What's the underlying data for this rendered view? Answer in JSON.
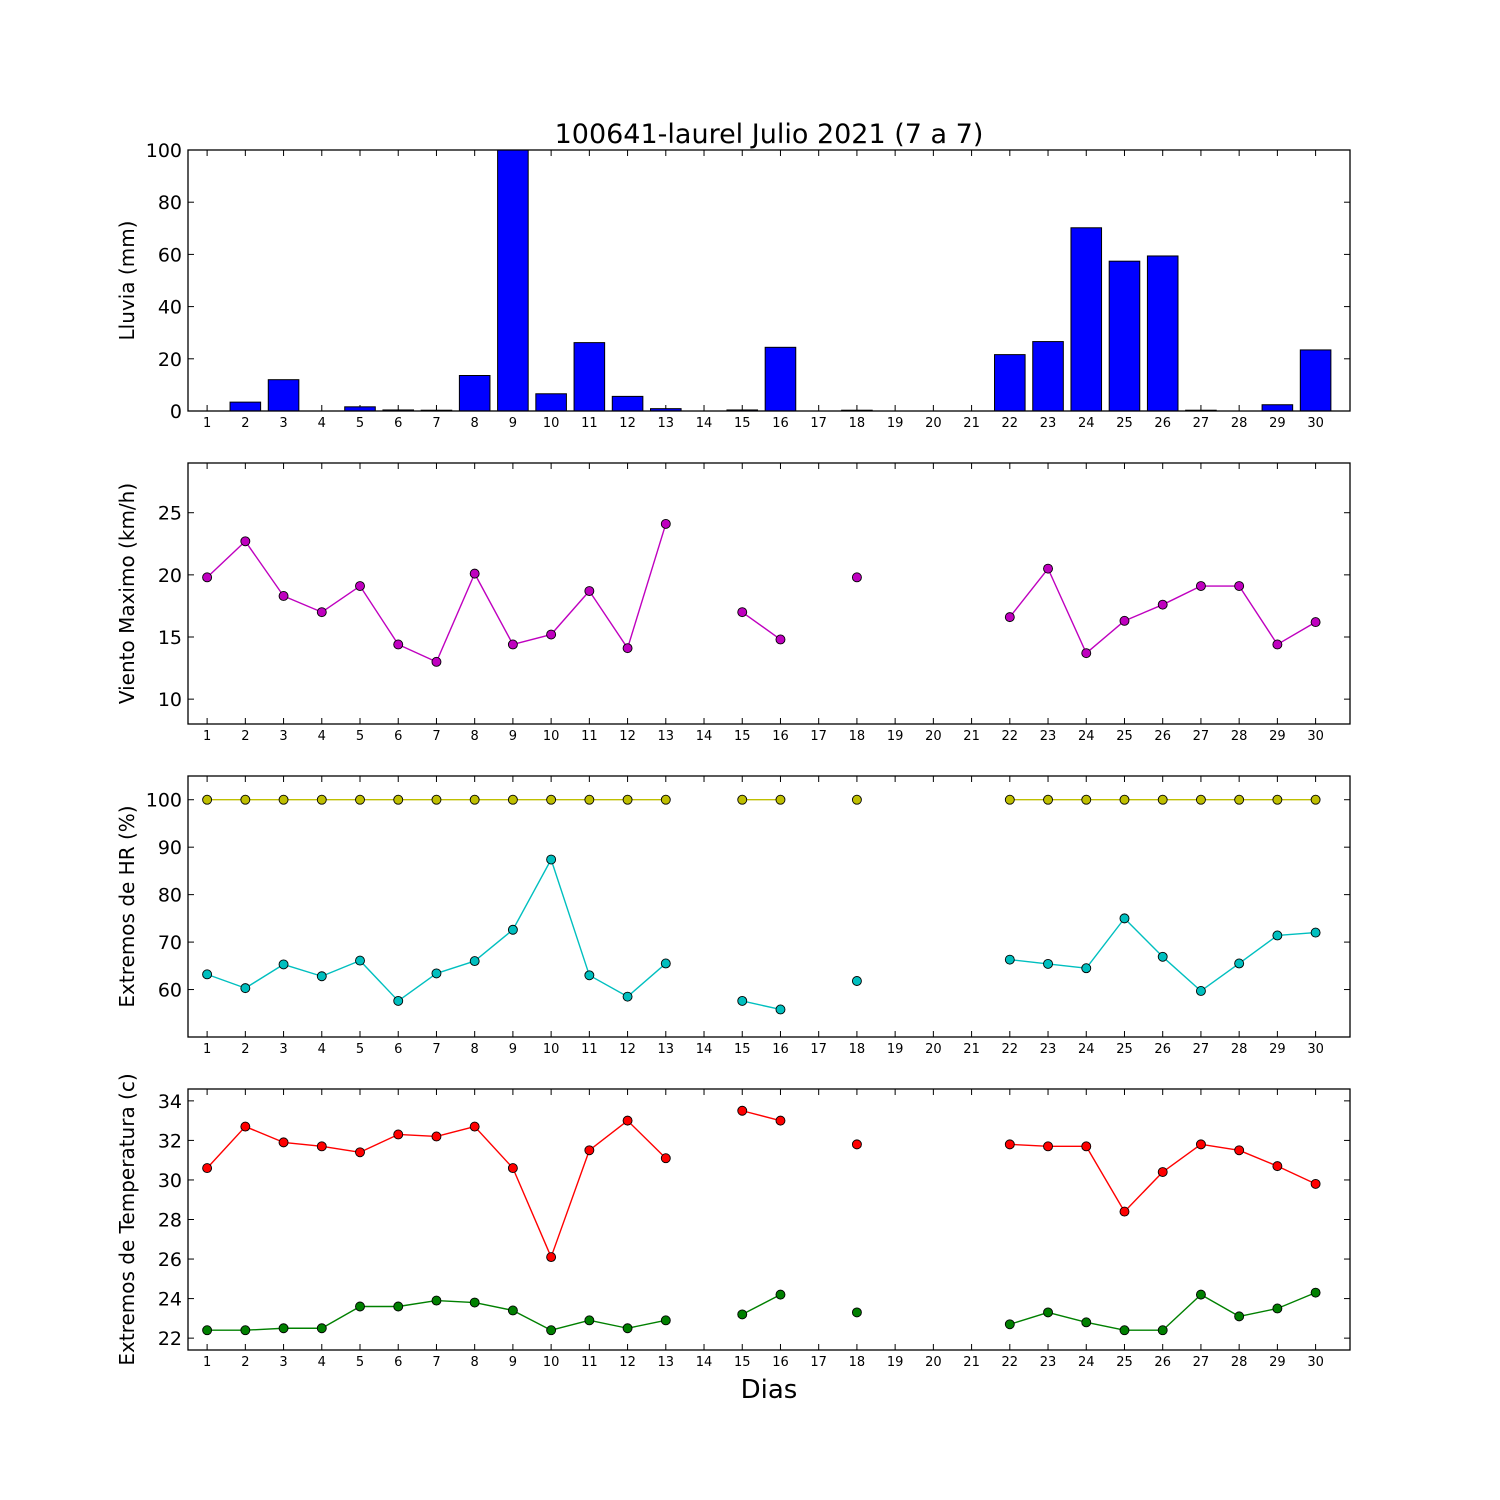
{
  "figure": {
    "title": "100641-laurel Julio 2021  (7 a 7)",
    "xlabel": "Dias"
  },
  "chart_data": [
    {
      "type": "bar",
      "ylabel": "Lluvia (mm)",
      "ylim": [
        0,
        100
      ],
      "yticks": [
        0,
        20,
        40,
        60,
        80,
        100
      ],
      "x": [
        1,
        2,
        3,
        4,
        5,
        6,
        7,
        8,
        9,
        10,
        11,
        12,
        13,
        14,
        15,
        16,
        17,
        18,
        19,
        20,
        21,
        22,
        23,
        24,
        25,
        26,
        27,
        28,
        29,
        30
      ],
      "xticks": [
        "1",
        "2",
        "3",
        "4",
        "5",
        "6",
        "7",
        "8",
        "9",
        "10",
        "11",
        "12",
        "13",
        "14",
        "15",
        "16",
        "17",
        "18",
        "19",
        "20",
        "21",
        "22",
        "23",
        "24",
        "25",
        "26",
        "27",
        "28",
        "29",
        "30"
      ],
      "series": [
        {
          "color": "#0000ff",
          "values": [
            0,
            3.4,
            12,
            0,
            1.6,
            0.4,
            0.3,
            13.6,
            100,
            6.6,
            26.2,
            5.6,
            0.9,
            0,
            0.4,
            24.4,
            0,
            0.3,
            0,
            0,
            0,
            21.6,
            26.6,
            70.2,
            57.4,
            59.4,
            0.3,
            0,
            2.4,
            23.4
          ]
        }
      ]
    },
    {
      "type": "line",
      "ylabel": "Viento Maximo (km/h)",
      "ylim": [
        8,
        29
      ],
      "yticks": [
        10,
        15,
        20,
        25
      ],
      "x": [
        1,
        2,
        3,
        4,
        5,
        6,
        7,
        8,
        9,
        10,
        11,
        12,
        13,
        14,
        15,
        16,
        17,
        18,
        19,
        20,
        21,
        22,
        23,
        24,
        25,
        26,
        27,
        28,
        29,
        30
      ],
      "xticks": [
        "1",
        "2",
        "3",
        "4",
        "5",
        "6",
        "7",
        "8",
        "9",
        "10",
        "11",
        "12",
        "13",
        "14",
        "15",
        "16",
        "17",
        "18",
        "19",
        "20",
        "21",
        "22",
        "23",
        "24",
        "25",
        "26",
        "27",
        "28",
        "29",
        "30"
      ],
      "series": [
        {
          "color": "#bf00bf",
          "values": [
            19.8,
            22.7,
            18.3,
            17.0,
            19.1,
            14.4,
            13.0,
            20.1,
            14.4,
            15.2,
            18.7,
            14.1,
            24.1,
            null,
            17.0,
            14.8,
            null,
            19.8,
            null,
            null,
            null,
            16.6,
            20.5,
            13.7,
            16.3,
            17.6,
            19.1,
            19.1,
            14.4,
            16.2
          ]
        }
      ]
    },
    {
      "type": "line",
      "ylabel": "Extremos de HR (%)",
      "ylim": [
        50,
        105
      ],
      "yticks": [
        60,
        70,
        80,
        90,
        100
      ],
      "x": [
        1,
        2,
        3,
        4,
        5,
        6,
        7,
        8,
        9,
        10,
        11,
        12,
        13,
        14,
        15,
        16,
        17,
        18,
        19,
        20,
        21,
        22,
        23,
        24,
        25,
        26,
        27,
        28,
        29,
        30
      ],
      "xticks": [
        "1",
        "2",
        "3",
        "4",
        "5",
        "6",
        "7",
        "8",
        "9",
        "10",
        "11",
        "12",
        "13",
        "14",
        "15",
        "16",
        "17",
        "18",
        "19",
        "20",
        "21",
        "22",
        "23",
        "24",
        "25",
        "26",
        "27",
        "28",
        "29",
        "30"
      ],
      "series": [
        {
          "color": "#bfbf00",
          "values": [
            100,
            100,
            100,
            100,
            100,
            100,
            100,
            100,
            100,
            100,
            100,
            100,
            100,
            null,
            100,
            100,
            null,
            100,
            null,
            null,
            null,
            100,
            100,
            100,
            100,
            100,
            100,
            100,
            100,
            100
          ]
        },
        {
          "color": "#00bfbf",
          "values": [
            63.2,
            60.3,
            65.3,
            62.8,
            66.1,
            57.6,
            63.4,
            66.0,
            72.6,
            87.4,
            63.0,
            58.5,
            65.5,
            null,
            57.6,
            55.8,
            null,
            61.8,
            null,
            null,
            null,
            66.3,
            65.4,
            64.5,
            75.0,
            66.9,
            59.7,
            65.5,
            71.4,
            72.0
          ]
        }
      ]
    },
    {
      "type": "line",
      "ylabel": "Extremos de Temperatura (c)",
      "ylim": [
        21.4,
        34.6
      ],
      "yticks": [
        22,
        24,
        26,
        28,
        30,
        32,
        34
      ],
      "x": [
        1,
        2,
        3,
        4,
        5,
        6,
        7,
        8,
        9,
        10,
        11,
        12,
        13,
        14,
        15,
        16,
        17,
        18,
        19,
        20,
        21,
        22,
        23,
        24,
        25,
        26,
        27,
        28,
        29,
        30
      ],
      "xticks": [
        "1",
        "2",
        "3",
        "4",
        "5",
        "6",
        "7",
        "8",
        "9",
        "10",
        "11",
        "12",
        "13",
        "14",
        "15",
        "16",
        "17",
        "18",
        "19",
        "20",
        "21",
        "22",
        "23",
        "24",
        "25",
        "26",
        "27",
        "28",
        "29",
        "30"
      ],
      "series": [
        {
          "color": "#ff0000",
          "values": [
            30.6,
            32.7,
            31.9,
            31.7,
            31.4,
            32.3,
            32.2,
            32.7,
            30.6,
            26.1,
            31.5,
            33.0,
            31.1,
            null,
            33.5,
            33.0,
            null,
            31.8,
            null,
            null,
            null,
            31.8,
            31.7,
            31.7,
            28.4,
            30.4,
            31.8,
            31.5,
            30.7,
            29.8
          ]
        },
        {
          "color": "#008000",
          "values": [
            22.4,
            22.4,
            22.5,
            22.5,
            23.6,
            23.6,
            23.9,
            23.8,
            23.4,
            22.4,
            22.9,
            22.5,
            22.9,
            null,
            23.2,
            24.2,
            null,
            23.3,
            null,
            null,
            null,
            22.7,
            23.3,
            22.8,
            22.4,
            22.4,
            24.2,
            23.1,
            23.5,
            24.3
          ]
        }
      ]
    }
  ]
}
